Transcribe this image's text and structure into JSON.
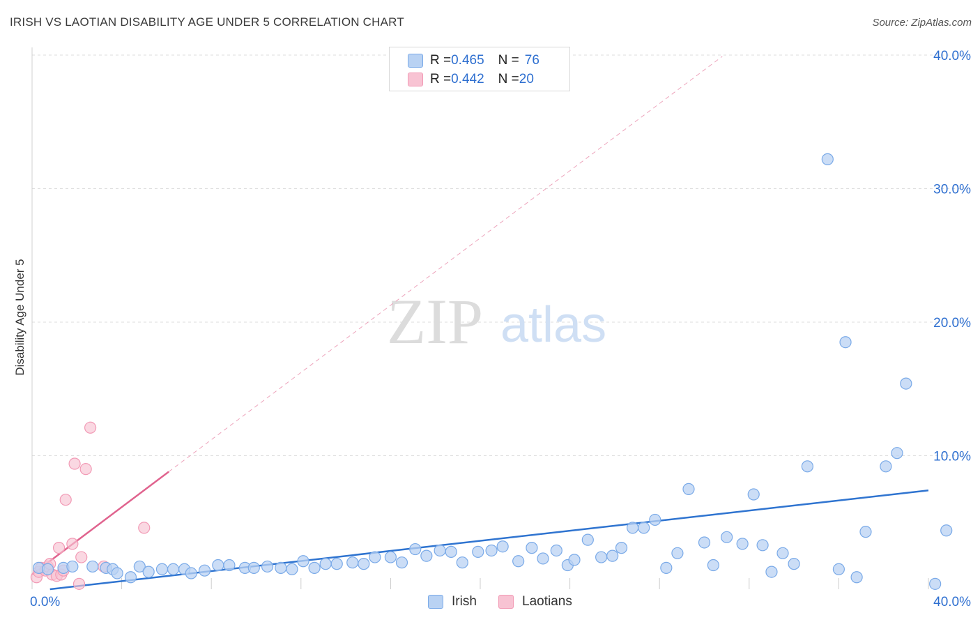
{
  "title": "IRISH VS LAOTIAN DISABILITY AGE UNDER 5 CORRELATION CHART",
  "source": "Source: ZipAtlas.com",
  "watermark": {
    "zip": "ZIP",
    "atlas": "atlas"
  },
  "colors": {
    "irish": "#7aaae8",
    "irish_fill": "#b9d2f3",
    "irish_line": "#2f74d0",
    "laotian": "#f29ab5",
    "laotian_fill": "#f8c3d3",
    "laotian_line": "#e0638e",
    "value": "#2e6fd0"
  },
  "legend": {
    "irish": {
      "r_label": "R = ",
      "r_value": "0.465",
      "n_label": "N = ",
      "n_value": "76"
    },
    "laotians": {
      "r_label": "R = ",
      "r_value": "0.442",
      "n_label": "N = ",
      "n_value": "20"
    }
  },
  "bottom_legend": {
    "irish": "Irish",
    "laotians": "Laotians"
  },
  "chart_data": {
    "type": "scatter",
    "title": "IRISH VS LAOTIAN DISABILITY AGE UNDER 5 CORRELATION CHART",
    "ylabel": "Disability Age Under 5",
    "xlabel": "",
    "xlim": [
      0,
      40
    ],
    "ylim": [
      0,
      40
    ],
    "x_tick_labels": [
      "0.0%",
      "40.0%"
    ],
    "y_tick_labels": [
      "10.0%",
      "20.0%",
      "30.0%",
      "40.0%"
    ],
    "y_tick_values": [
      10,
      20,
      30,
      40
    ],
    "series": [
      {
        "name": "Irish",
        "points": [
          [
            0.3,
            1.6
          ],
          [
            0.7,
            1.5
          ],
          [
            1.4,
            1.6
          ],
          [
            1.8,
            1.7
          ],
          [
            2.7,
            1.7
          ],
          [
            3.3,
            1.6
          ],
          [
            3.6,
            1.5
          ],
          [
            3.8,
            1.2
          ],
          [
            4.4,
            0.9
          ],
          [
            4.8,
            1.7
          ],
          [
            5.2,
            1.3
          ],
          [
            5.8,
            1.5
          ],
          [
            6.3,
            1.5
          ],
          [
            6.8,
            1.5
          ],
          [
            7.1,
            1.2
          ],
          [
            7.7,
            1.4
          ],
          [
            8.3,
            1.8
          ],
          [
            8.8,
            1.8
          ],
          [
            9.5,
            1.6
          ],
          [
            9.9,
            1.6
          ],
          [
            10.5,
            1.7
          ],
          [
            11.1,
            1.6
          ],
          [
            11.6,
            1.5
          ],
          [
            12.1,
            2.1
          ],
          [
            12.6,
            1.6
          ],
          [
            13.1,
            1.9
          ],
          [
            13.6,
            1.9
          ],
          [
            14.3,
            2.0
          ],
          [
            14.8,
            1.9
          ],
          [
            15.3,
            2.4
          ],
          [
            16.0,
            2.4
          ],
          [
            16.5,
            2.0
          ],
          [
            17.1,
            3.0
          ],
          [
            17.6,
            2.5
          ],
          [
            18.2,
            2.9
          ],
          [
            18.7,
            2.8
          ],
          [
            19.2,
            2.0
          ],
          [
            19.9,
            2.8
          ],
          [
            20.5,
            2.9
          ],
          [
            21.0,
            3.2
          ],
          [
            21.7,
            2.1
          ],
          [
            22.3,
            3.1
          ],
          [
            22.8,
            2.3
          ],
          [
            23.4,
            2.9
          ],
          [
            23.9,
            1.8
          ],
          [
            24.2,
            2.2
          ],
          [
            24.8,
            3.7
          ],
          [
            25.4,
            2.4
          ],
          [
            25.9,
            2.5
          ],
          [
            26.3,
            3.1
          ],
          [
            26.8,
            4.6
          ],
          [
            27.3,
            4.6
          ],
          [
            27.8,
            5.2
          ],
          [
            28.3,
            1.6
          ],
          [
            28.8,
            2.7
          ],
          [
            29.3,
            7.5
          ],
          [
            30.0,
            3.5
          ],
          [
            30.4,
            1.8
          ],
          [
            31.0,
            3.9
          ],
          [
            31.7,
            3.4
          ],
          [
            32.2,
            7.1
          ],
          [
            32.6,
            3.3
          ],
          [
            33.0,
            1.3
          ],
          [
            33.5,
            2.7
          ],
          [
            34.0,
            1.9
          ],
          [
            34.6,
            9.2
          ],
          [
            35.5,
            32.2
          ],
          [
            36.0,
            1.5
          ],
          [
            36.3,
            18.5
          ],
          [
            36.8,
            0.9
          ],
          [
            37.2,
            4.3
          ],
          [
            38.1,
            9.2
          ],
          [
            38.6,
            10.2
          ],
          [
            39.0,
            15.4
          ],
          [
            40.3,
            0.4
          ],
          [
            40.8,
            4.4
          ]
        ]
      },
      {
        "name": "Laotians",
        "points": [
          [
            0.2,
            0.9
          ],
          [
            0.3,
            1.3
          ],
          [
            0.4,
            1.6
          ],
          [
            0.6,
            1.4
          ],
          [
            0.7,
            1.7
          ],
          [
            0.8,
            1.9
          ],
          [
            0.9,
            1.1
          ],
          [
            1.1,
            1.0
          ],
          [
            1.2,
            3.1
          ],
          [
            1.3,
            1.1
          ],
          [
            1.4,
            1.4
          ],
          [
            1.5,
            6.7
          ],
          [
            1.8,
            3.4
          ],
          [
            1.9,
            9.4
          ],
          [
            2.1,
            0.4
          ],
          [
            2.2,
            2.4
          ],
          [
            2.4,
            9.0
          ],
          [
            2.6,
            12.1
          ],
          [
            3.2,
            1.7
          ],
          [
            5.0,
            4.6
          ]
        ]
      }
    ],
    "trend_lines": [
      {
        "series": "Irish",
        "x": [
          0.8,
          40.0
        ],
        "y": [
          0.0,
          7.4
        ],
        "style": "solid"
      },
      {
        "series": "Laotians",
        "x": [
          0.0,
          6.1
        ],
        "y": [
          1.1,
          8.8
        ],
        "style": "solid"
      },
      {
        "series": "Laotians",
        "x": [
          6.1,
          30.8
        ],
        "y": [
          8.8,
          39.9
        ],
        "style": "dashed"
      }
    ],
    "grid": true,
    "legend_position": "top-center"
  }
}
